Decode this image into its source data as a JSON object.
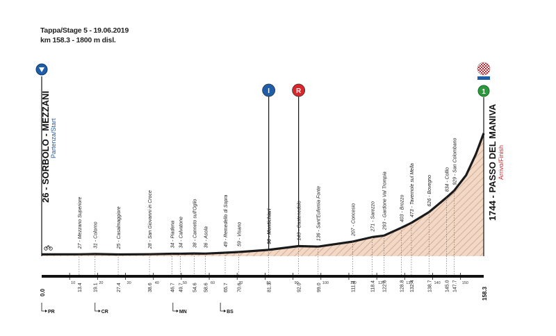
{
  "header": {
    "stage_line": "Tappa/Stage 5 - 19.06.2019",
    "length_line": "km 158.3 - 1800 m disl."
  },
  "start": {
    "name": "26 - SORBOLO - MEZZANI",
    "sub": "Partenza/Start",
    "icon": "start-arrow-icon"
  },
  "finish": {
    "name": "1744 - PASSO DEL MANIVA",
    "sub": "Arrivo/Finish",
    "icon": "checkered-flag-icon",
    "badge": "1"
  },
  "markers": [
    {
      "label": "I",
      "km": 81.3,
      "icon": "intermediate-sprint-icon",
      "color": "#1f5da8"
    },
    {
      "label": "R",
      "km": 92.0,
      "icon": "refreshment-point-icon",
      "color": "#d9262b"
    }
  ],
  "provinces": [
    {
      "code": "PR",
      "km": 0.0
    },
    {
      "code": "CR",
      "km": 19.1
    },
    {
      "code": "MN",
      "km": 47.0
    },
    {
      "code": "BS",
      "km": 64.0
    }
  ],
  "colors": {
    "profile_fill": "#f3d8c6",
    "profile_line": "#1a1a1a",
    "start_accent": "#1f5da8",
    "finish_accent": "#d9262b"
  },
  "chart_data": {
    "type": "area",
    "xlabel": "",
    "ylabel": "",
    "xlim": [
      0,
      158.3
    ],
    "ylim": [
      0,
      1800
    ],
    "x_ticks": [
      10,
      20,
      30,
      40,
      50,
      60,
      70,
      80,
      90,
      100,
      110,
      120,
      130,
      140,
      150
    ],
    "places": [
      {
        "label": "27 - Mezzano Superiore",
        "km": "13.4",
        "kmv": 13.4,
        "alt": 27
      },
      {
        "label": "31 - Colorno",
        "km": "19.1",
        "kmv": 19.1,
        "alt": 31
      },
      {
        "label": "25 - Casalmaggiore",
        "km": "27.4",
        "kmv": 27.4,
        "alt": 25
      },
      {
        "label": "28 - San Giovanni in Croce",
        "km": "38.6",
        "kmv": 38.6,
        "alt": 28
      },
      {
        "label": "34 - Piadena",
        "km": "46.7",
        "kmv": 46.7,
        "alt": 34
      },
      {
        "label": "34 - Calvatone",
        "km": "49.7",
        "kmv": 49.7,
        "alt": 34
      },
      {
        "label": "38 - Canneto sull'Oglio",
        "km": "54.6",
        "kmv": 54.6,
        "alt": 38
      },
      {
        "label": "36 - Asola",
        "km": "58.6",
        "kmv": 58.6,
        "alt": 36
      },
      {
        "label": "49 - Remedello di Sopra",
        "km": "65.7",
        "kmv": 65.7,
        "alt": 49
      },
      {
        "label": "59 - Visano",
        "km": "70.6",
        "kmv": 70.6,
        "alt": 59
      },
      {
        "label": "90 - Montichiari",
        "km": "81.3",
        "kmv": 81.3,
        "alt": 90,
        "bold": true
      },
      {
        "label": "143 - Castenedolo",
        "km": "92.0",
        "kmv": 92.0,
        "alt": 143
      },
      {
        "label": "136 - Sant'Eufemia Fonte",
        "km": "99.0",
        "kmv": 99.0,
        "alt": 136
      },
      {
        "label": "207 - Concesio",
        "km": "111.4",
        "kmv": 111.4,
        "alt": 207
      },
      {
        "label": "271 - Sarezzo",
        "km": "118.4",
        "kmv": 118.4,
        "alt": 271
      },
      {
        "label": "293 - Gardone Val Trompia",
        "km": "122.6",
        "kmv": 122.6,
        "alt": 293
      },
      {
        "label": "403 - Brozzo",
        "km": "128.8",
        "kmv": 128.8,
        "alt": 403
      },
      {
        "label": "473 - Tavernole sul Mella",
        "km": "132.4",
        "kmv": 132.4,
        "alt": 473
      },
      {
        "label": "626 - Bovegno",
        "km": "138.7",
        "kmv": 138.7,
        "alt": 626
      },
      {
        "label": "834 - Collio",
        "km": "145.0",
        "kmv": 145.0,
        "alt": 834
      },
      {
        "label": "929 - San Colombano",
        "km": "147.7",
        "kmv": 147.7,
        "alt": 929
      }
    ],
    "start_km": "0.0",
    "finish_km": "158.3",
    "profile": [
      [
        0,
        26
      ],
      [
        13.4,
        27
      ],
      [
        19.1,
        31
      ],
      [
        27.4,
        25
      ],
      [
        38.6,
        28
      ],
      [
        46.7,
        34
      ],
      [
        49.7,
        34
      ],
      [
        54.6,
        38
      ],
      [
        58.6,
        36
      ],
      [
        65.7,
        49
      ],
      [
        70.6,
        59
      ],
      [
        81.3,
        90
      ],
      [
        92.0,
        143
      ],
      [
        99.0,
        136
      ],
      [
        111.4,
        207
      ],
      [
        118.4,
        271
      ],
      [
        122.6,
        293
      ],
      [
        128.8,
        403
      ],
      [
        132.4,
        473
      ],
      [
        138.7,
        626
      ],
      [
        145.0,
        834
      ],
      [
        147.7,
        929
      ],
      [
        152.0,
        1150
      ],
      [
        155.5,
        1450
      ],
      [
        158.3,
        1744
      ]
    ]
  }
}
